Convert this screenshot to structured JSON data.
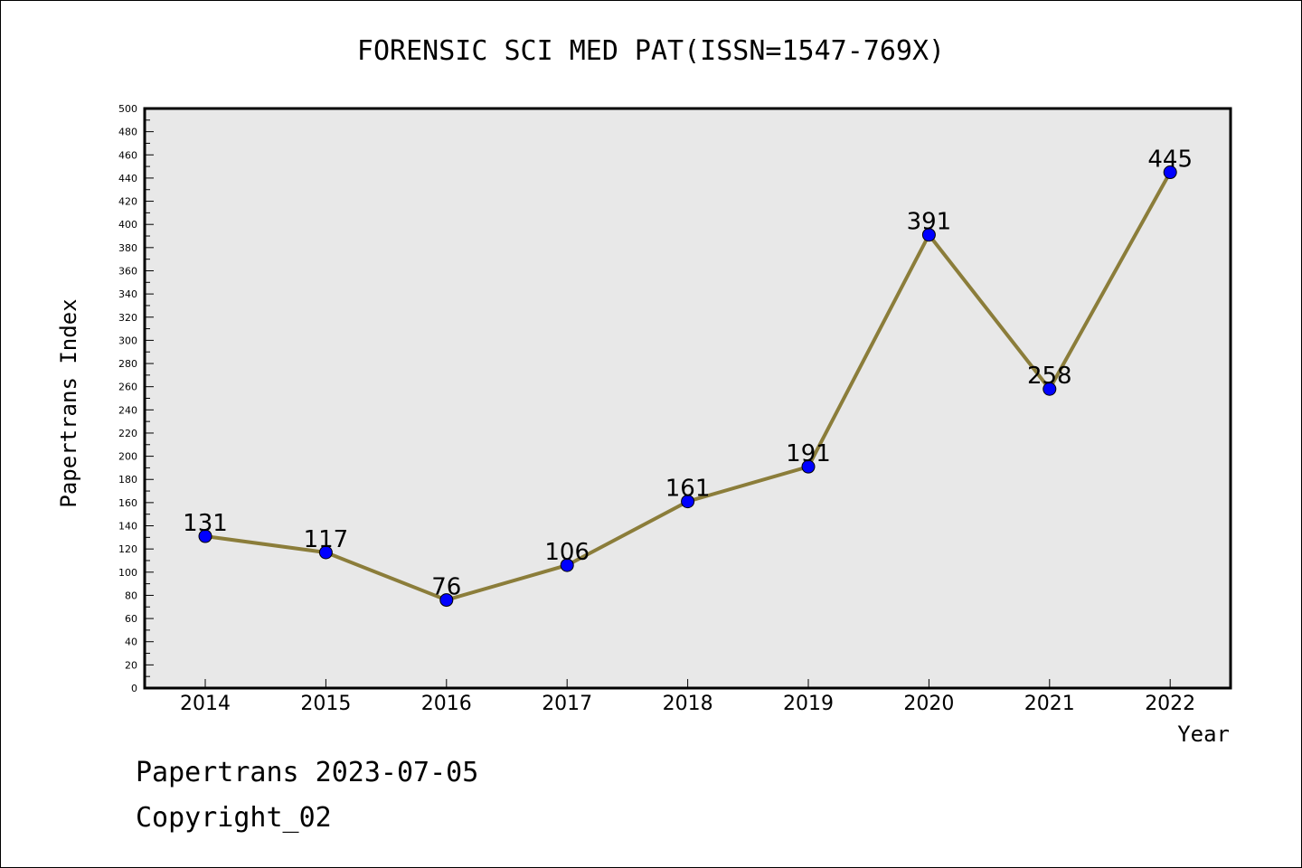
{
  "chart_data": {
    "type": "line",
    "title": "FORENSIC SCI MED PAT(ISSN=1547-769X)",
    "xlabel": "Year",
    "ylabel": "Papertrans Index",
    "categories": [
      "2014",
      "2015",
      "2016",
      "2017",
      "2018",
      "2019",
      "2020",
      "2021",
      "2022"
    ],
    "values": [
      131,
      117,
      76,
      106,
      161,
      191,
      391,
      258,
      445
    ],
    "ylim": [
      0,
      500
    ],
    "ytick_step": 20,
    "yticks": [
      "0",
      "20",
      "40",
      "60",
      "80",
      "100",
      "120",
      "140",
      "160",
      "180",
      "200",
      "220",
      "240",
      "260",
      "280",
      "300",
      "320",
      "340",
      "360",
      "380",
      "400",
      "420",
      "440",
      "460",
      "480",
      "500"
    ],
    "data_labels": [
      "131",
      "117",
      "76",
      "106",
      "161",
      "191",
      "391",
      "258",
      "445"
    ],
    "grid": false,
    "legend": "none",
    "colors": {
      "line": "#8b7d3a",
      "marker": "#0000ff",
      "plot_background": "#e8e8e8"
    }
  },
  "footer": {
    "date_line": "Papertrans 2023-07-05",
    "copyright": "Copyright_02"
  }
}
